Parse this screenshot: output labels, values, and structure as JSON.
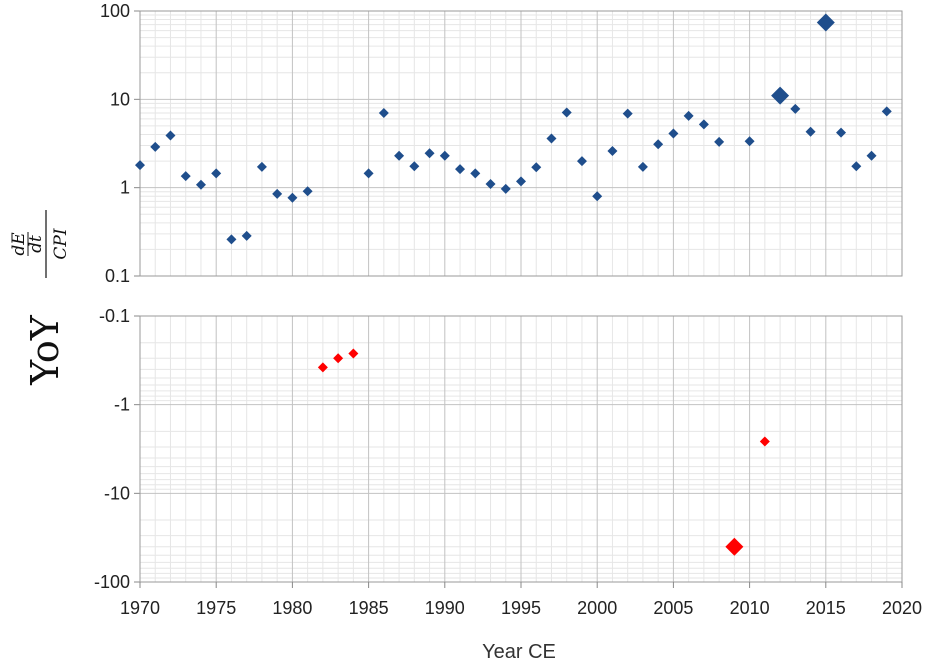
{
  "chart_data": {
    "type": "scatter",
    "xlabel": "Year CE",
    "ylabel_text": "YoY",
    "ylabel_fraction": {
      "numerator": "dE",
      "numerator_denominator": "dt",
      "denominator": "CPI"
    },
    "x_range": [
      1970,
      2020
    ],
    "x_ticks": [
      "1970",
      "1975",
      "1980",
      "1985",
      "1990",
      "1995",
      "2000",
      "2005",
      "2010",
      "2015",
      "2020"
    ],
    "grid": true,
    "panels": [
      {
        "name": "positive",
        "y_scale": "log",
        "y_range": [
          0.1,
          100
        ],
        "y_ticks": [
          "100",
          "10",
          "1",
          "0.1"
        ],
        "color": "#1f4e8c",
        "points": [
          {
            "x": 1970,
            "y": 1.8
          },
          {
            "x": 1971,
            "y": 2.9
          },
          {
            "x": 1972,
            "y": 3.9
          },
          {
            "x": 1973,
            "y": 1.35
          },
          {
            "x": 1974,
            "y": 1.08
          },
          {
            "x": 1975,
            "y": 1.45
          },
          {
            "x": 1976,
            "y": 0.26
          },
          {
            "x": 1977,
            "y": 0.285
          },
          {
            "x": 1978,
            "y": 1.72
          },
          {
            "x": 1979,
            "y": 0.85
          },
          {
            "x": 1980,
            "y": 0.77
          },
          {
            "x": 1981,
            "y": 0.91
          },
          {
            "x": 1985,
            "y": 1.45
          },
          {
            "x": 1986,
            "y": 7.0
          },
          {
            "x": 1987,
            "y": 2.3
          },
          {
            "x": 1988,
            "y": 1.75
          },
          {
            "x": 1989,
            "y": 2.45
          },
          {
            "x": 1990,
            "y": 2.3
          },
          {
            "x": 1991,
            "y": 1.62
          },
          {
            "x": 1992,
            "y": 1.45
          },
          {
            "x": 1993,
            "y": 1.1
          },
          {
            "x": 1994,
            "y": 0.97
          },
          {
            "x": 1995,
            "y": 1.18
          },
          {
            "x": 1996,
            "y": 1.7
          },
          {
            "x": 1997,
            "y": 3.6
          },
          {
            "x": 1998,
            "y": 7.1
          },
          {
            "x": 1999,
            "y": 2.0
          },
          {
            "x": 2000,
            "y": 0.8
          },
          {
            "x": 2001,
            "y": 2.6
          },
          {
            "x": 2002,
            "y": 6.9
          },
          {
            "x": 2003,
            "y": 1.72
          },
          {
            "x": 2004,
            "y": 3.1
          },
          {
            "x": 2005,
            "y": 4.1
          },
          {
            "x": 2006,
            "y": 6.5
          },
          {
            "x": 2007,
            "y": 5.2
          },
          {
            "x": 2008,
            "y": 3.3
          },
          {
            "x": 2010,
            "y": 3.35
          },
          {
            "x": 2012,
            "y": 11,
            "size": "large"
          },
          {
            "x": 2013,
            "y": 7.8
          },
          {
            "x": 2014,
            "y": 4.3
          },
          {
            "x": 2015,
            "y": 74,
            "size": "large"
          },
          {
            "x": 2016,
            "y": 4.2
          },
          {
            "x": 2017,
            "y": 1.75
          },
          {
            "x": 2018,
            "y": 2.3
          },
          {
            "x": 2019,
            "y": 7.3
          }
        ]
      },
      {
        "name": "negative",
        "y_scale": "log",
        "y_range": [
          -0.1,
          -100
        ],
        "y_ticks": [
          "-0.1",
          "-1",
          "-10",
          "-100"
        ],
        "color": "#ff0000",
        "points": [
          {
            "x": 1982,
            "y": -0.38
          },
          {
            "x": 1983,
            "y": -0.3
          },
          {
            "x": 1984,
            "y": -0.265
          },
          {
            "x": 2009,
            "y": -40,
            "size": "large"
          },
          {
            "x": 2011,
            "y": -2.6
          }
        ]
      }
    ]
  }
}
